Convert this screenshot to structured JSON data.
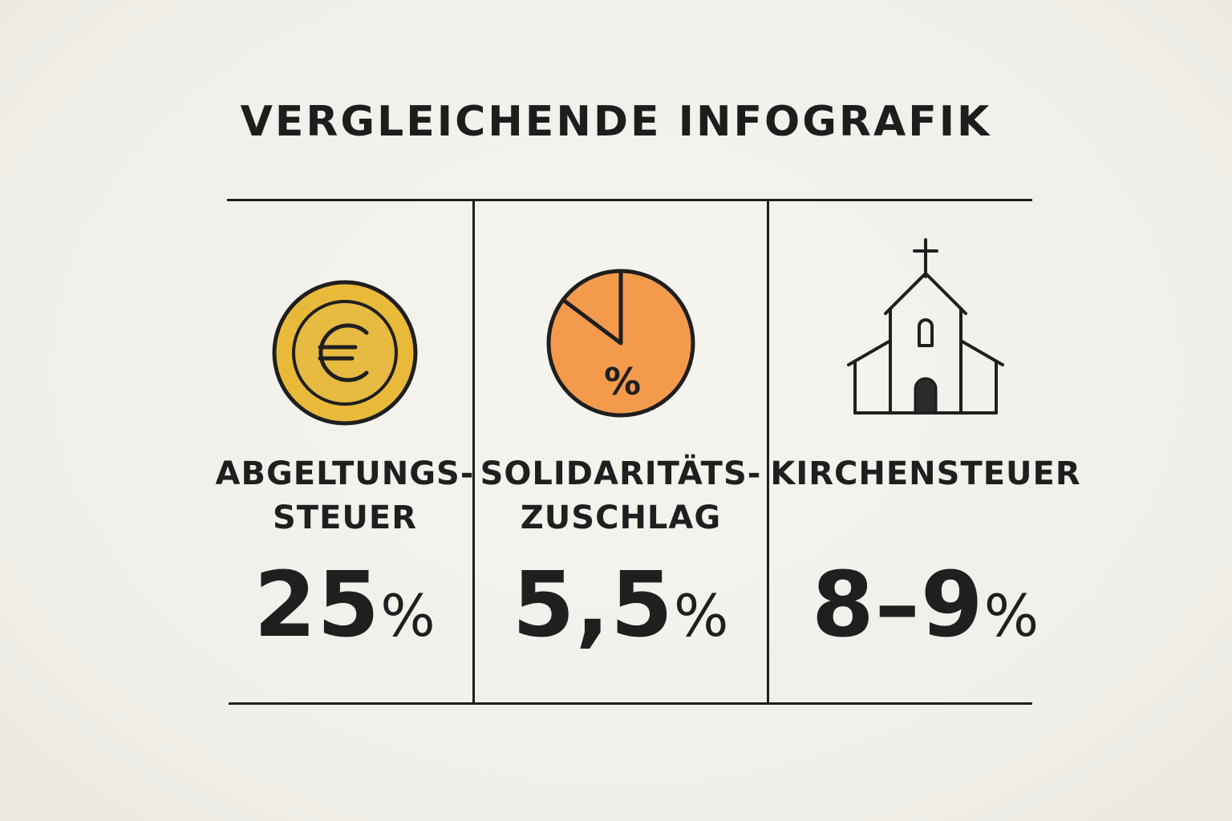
{
  "title": "VERGLEICHENDE INFOGRAFIK",
  "items": [
    {
      "label": "ABGELTUNGS-\nSTEUER",
      "value": "25",
      "unit": "%",
      "icon": "euro-coin-icon",
      "color": "#e9b93a"
    },
    {
      "label": "SOLIDARITÄTS-\nZUSCHLAG",
      "value": "5,5",
      "unit": "%",
      "icon": "pie-percent-icon",
      "color": "#f39a4c"
    },
    {
      "label": "KIRCHENSTEUER",
      "value": "8–9",
      "unit": "%",
      "icon": "church-icon",
      "color": "#1f1f1f"
    }
  ]
}
